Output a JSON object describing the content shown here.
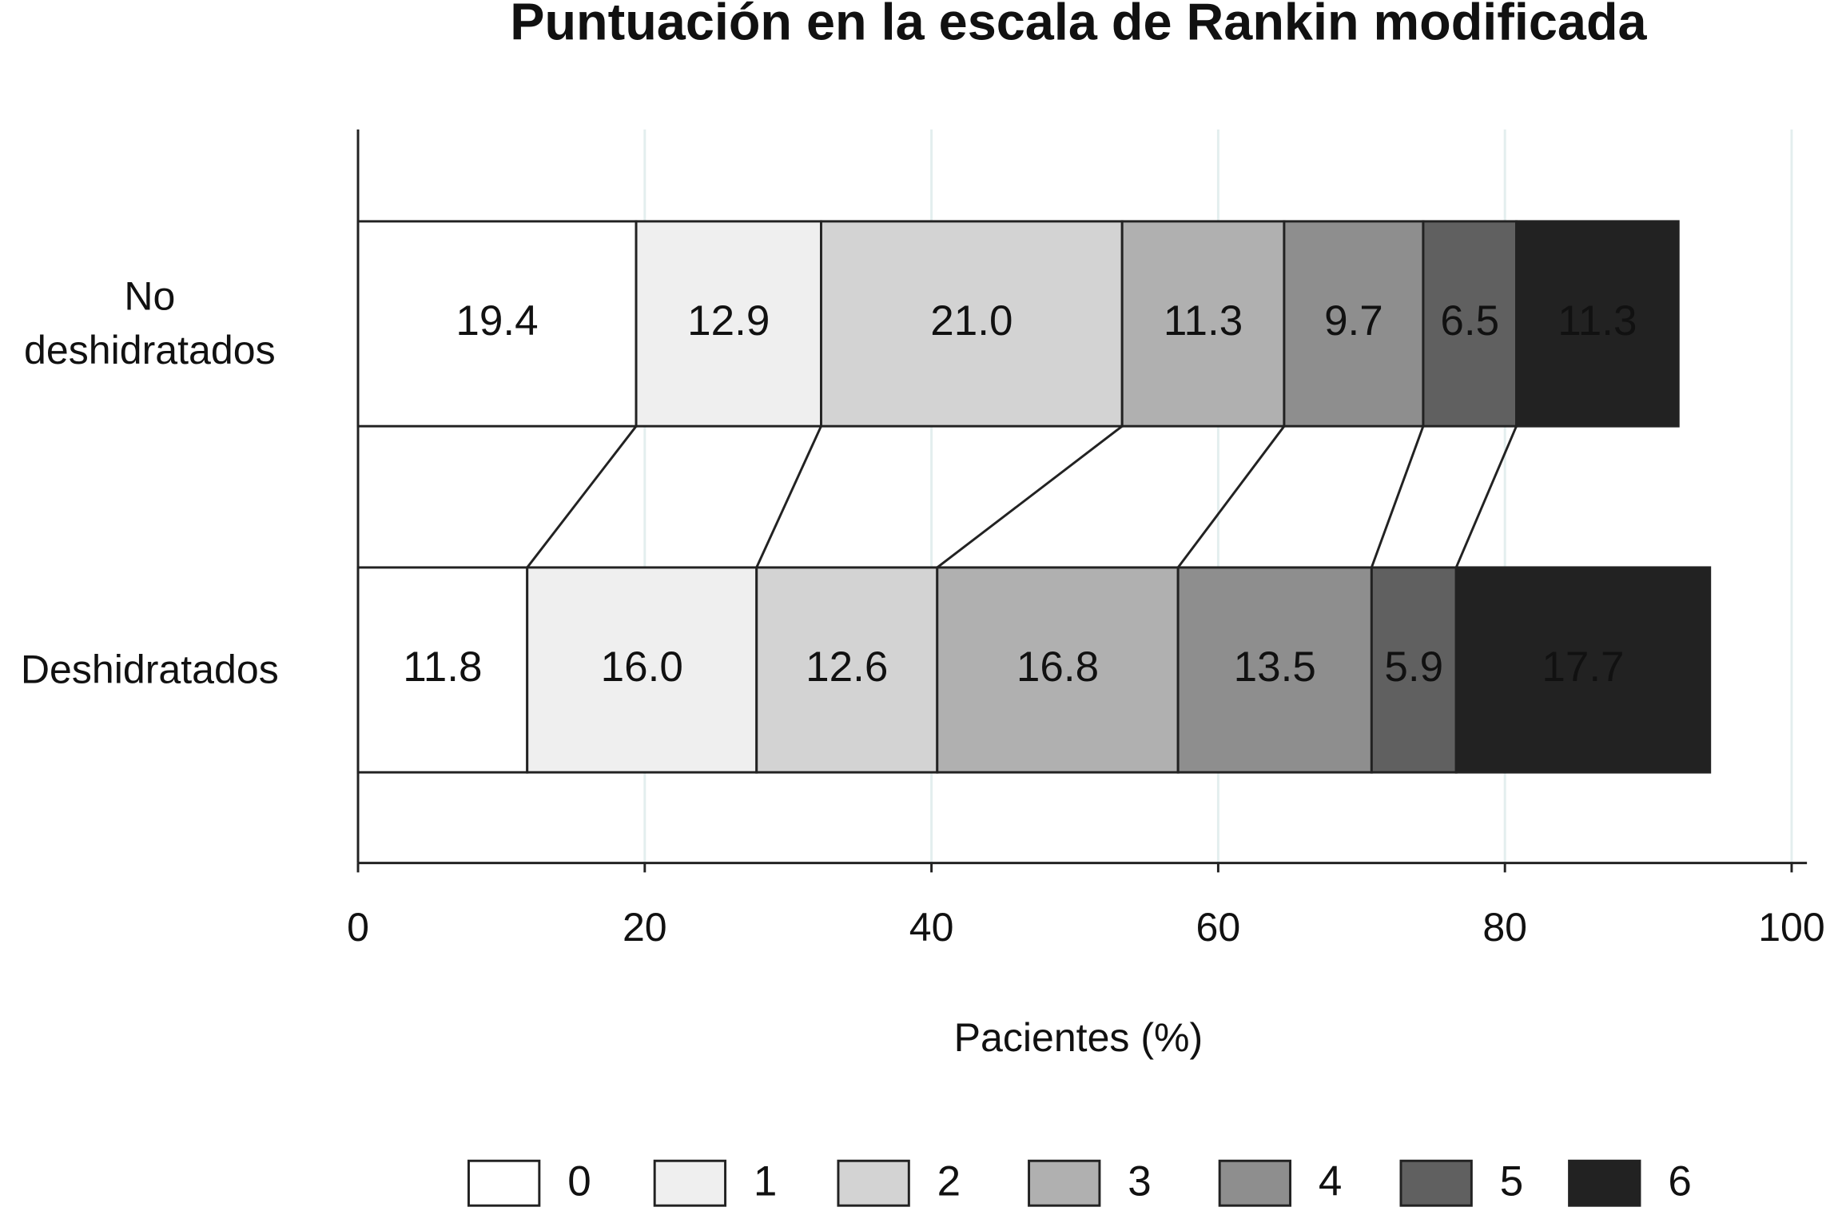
{
  "chart_data": {
    "type": "stacked-bar-horizontal",
    "title": "Puntuación en la escala de Rankin modificada",
    "categories": [
      "No deshidratados",
      "Deshidratados"
    ],
    "series": [
      {
        "name": "0",
        "color": "#ffffff",
        "values": [
          19.4,
          11.8
        ]
      },
      {
        "name": "1",
        "color": "#efefef",
        "values": [
          12.9,
          16.0
        ],
        "value_labels": [
          "12.9",
          "16.0"
        ]
      },
      {
        "name": "2",
        "color": "#d3d3d3",
        "values": [
          21.0,
          12.6
        ],
        "value_labels": [
          "21.0",
          "12.6"
        ]
      },
      {
        "name": "3",
        "color": "#b0b0b0",
        "values": [
          11.3,
          16.8
        ]
      },
      {
        "name": "4",
        "color": "#8e8e8e",
        "values": [
          9.7,
          13.5
        ]
      },
      {
        "name": "5",
        "color": "#606060",
        "values": [
          6.5,
          5.9
        ]
      },
      {
        "name": "6",
        "color": "#222222",
        "values": [
          11.3,
          17.7
        ]
      }
    ],
    "x_label": "Pacientes (%)",
    "xlim": [
      0,
      100
    ],
    "xticks": [
      0,
      20,
      40,
      60,
      80,
      100
    ],
    "grid": true,
    "legend": "bottom"
  }
}
